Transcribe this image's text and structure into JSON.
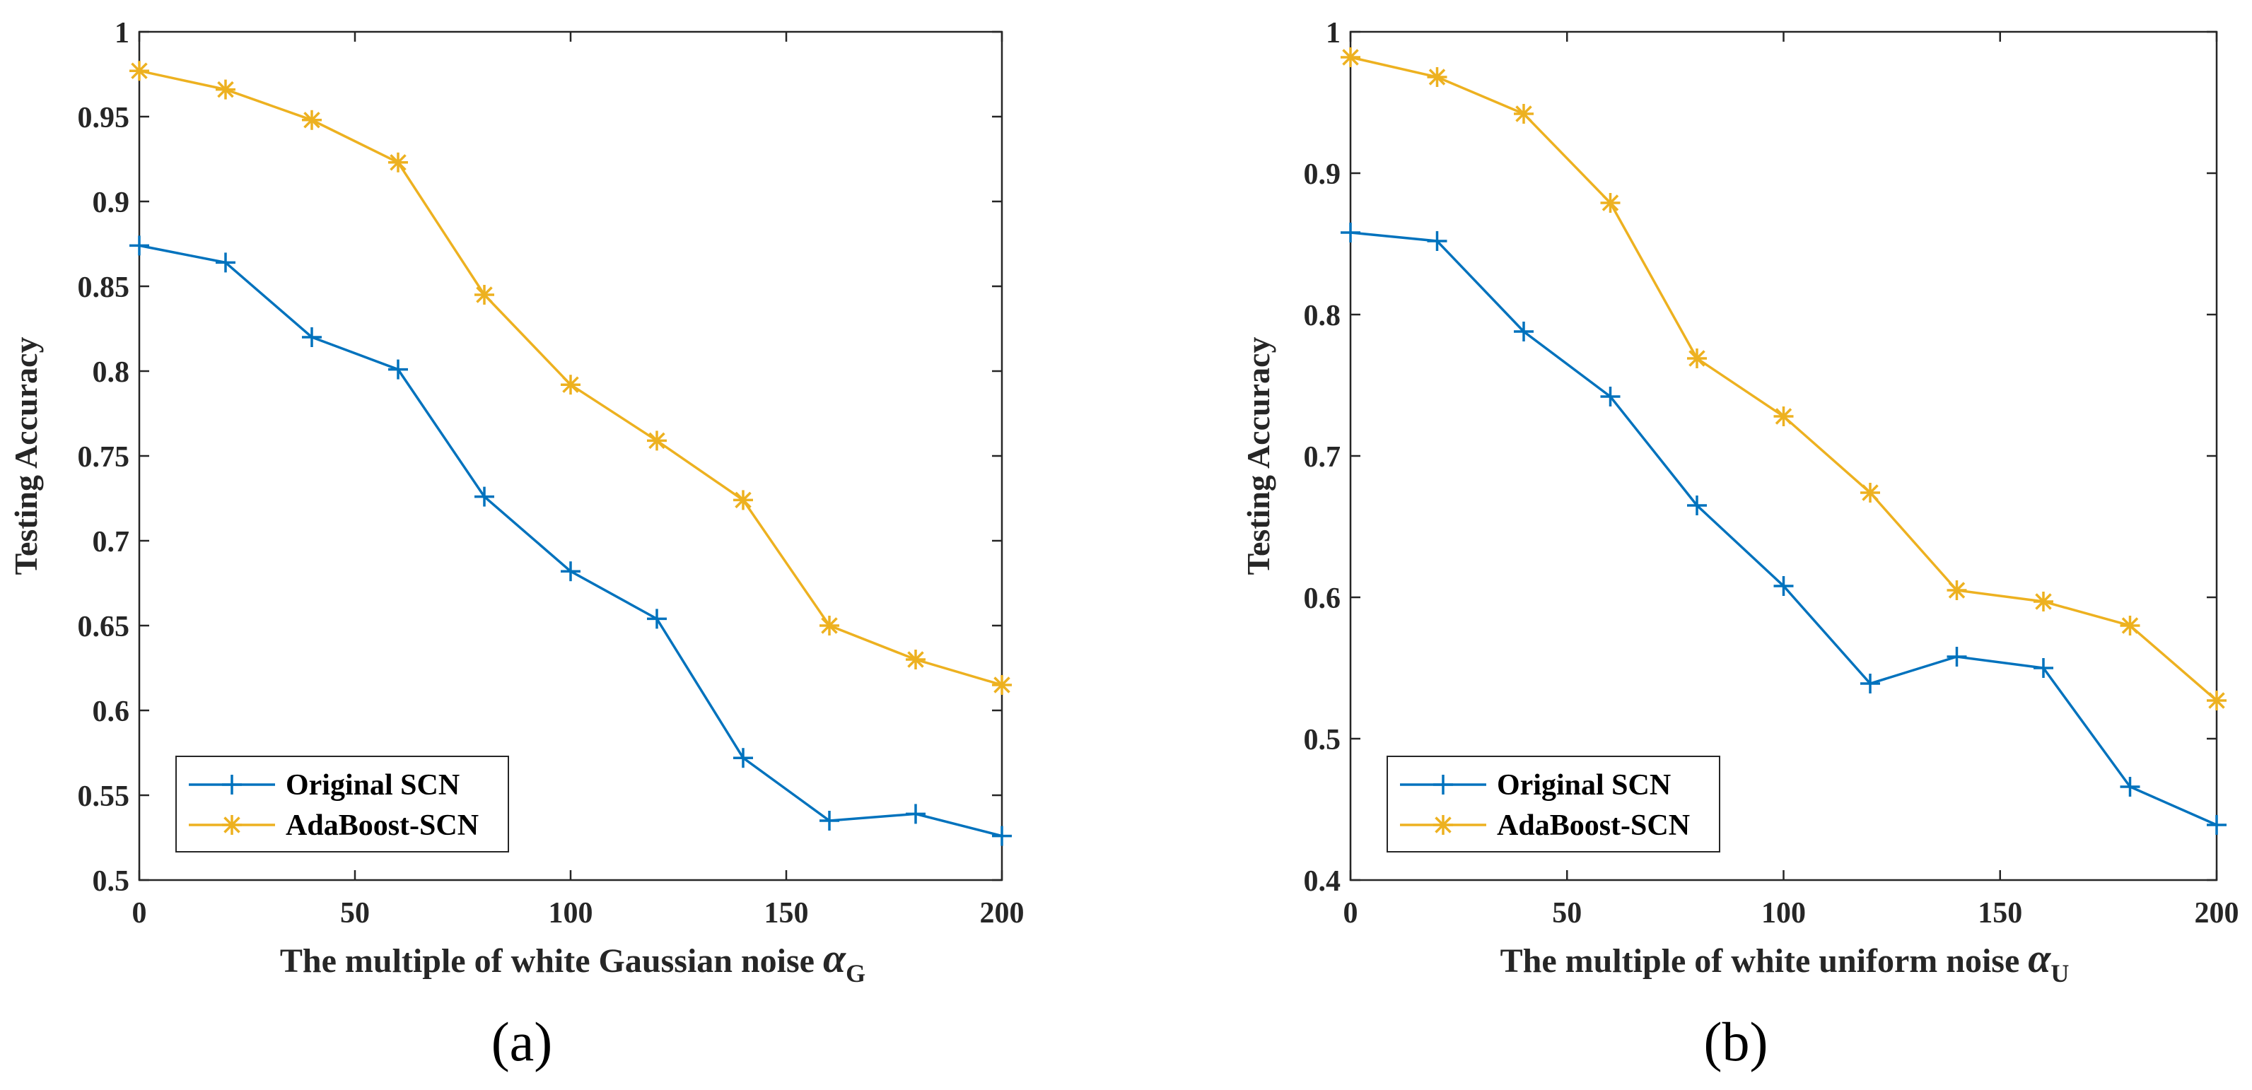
{
  "chart_data": [
    {
      "type": "line",
      "panel_label": "(a)",
      "title": "",
      "xlabel": "The multiple of white Gaussian noise",
      "xlabel_symbol": "α",
      "xlabel_subscript": "G",
      "ylabel": "Testing Accuracy",
      "xlim": [
        0,
        200
      ],
      "ylim": [
        0.5,
        1
      ],
      "xticks": [
        0,
        50,
        100,
        150,
        200
      ],
      "xtick_labels": [
        "0",
        "50",
        "100",
        "150",
        "200"
      ],
      "yticks": [
        0.5,
        0.55,
        0.6,
        0.65,
        0.7,
        0.75,
        0.8,
        0.85,
        0.9,
        0.95,
        1
      ],
      "ytick_labels": [
        "0.5",
        "0.55",
        "0.6",
        "0.65",
        "0.7",
        "0.75",
        "0.8",
        "0.85",
        "0.9",
        "0.95",
        "1"
      ],
      "grid": false,
      "legend_position": "bottom-left",
      "x": [
        0,
        20,
        40,
        60,
        80,
        100,
        120,
        140,
        160,
        180,
        200
      ],
      "series": [
        {
          "name": "Original SCN",
          "color": "#0072BD",
          "marker": "plus",
          "values": [
            0.874,
            0.864,
            0.82,
            0.801,
            0.726,
            0.682,
            0.654,
            0.572,
            0.535,
            0.539,
            0.526
          ]
        },
        {
          "name": "AdaBoost-SCN",
          "color": "#EDB120",
          "marker": "asterisk",
          "values": [
            0.977,
            0.966,
            0.948,
            0.923,
            0.845,
            0.792,
            0.759,
            0.724,
            0.65,
            0.63,
            0.615
          ]
        }
      ]
    },
    {
      "type": "line",
      "panel_label": "(b)",
      "title": "",
      "xlabel": "The multiple of white uniform noise",
      "xlabel_symbol": "α",
      "xlabel_subscript": "U",
      "ylabel": "Testing Accuracy",
      "xlim": [
        0,
        200
      ],
      "ylim": [
        0.4,
        1
      ],
      "xticks": [
        0,
        50,
        100,
        150,
        200
      ],
      "xtick_labels": [
        "0",
        "50",
        "100",
        "150",
        "200"
      ],
      "yticks": [
        0.4,
        0.5,
        0.6,
        0.7,
        0.8,
        0.9,
        1
      ],
      "ytick_labels": [
        "0.4",
        "0.5",
        "0.6",
        "0.7",
        "0.8",
        "0.9",
        "1"
      ],
      "grid": false,
      "legend_position": "bottom-left",
      "x": [
        0,
        20,
        40,
        60,
        80,
        100,
        120,
        140,
        160,
        180,
        200
      ],
      "series": [
        {
          "name": "Original SCN",
          "color": "#0072BD",
          "marker": "plus",
          "values": [
            0.858,
            0.852,
            0.788,
            0.742,
            0.665,
            0.608,
            0.539,
            0.558,
            0.55,
            0.466,
            0.439
          ]
        },
        {
          "name": "AdaBoost-SCN",
          "color": "#EDB120",
          "marker": "asterisk",
          "values": [
            0.982,
            0.968,
            0.942,
            0.879,
            0.769,
            0.728,
            0.674,
            0.605,
            0.597,
            0.58,
            0.527
          ]
        }
      ]
    }
  ]
}
